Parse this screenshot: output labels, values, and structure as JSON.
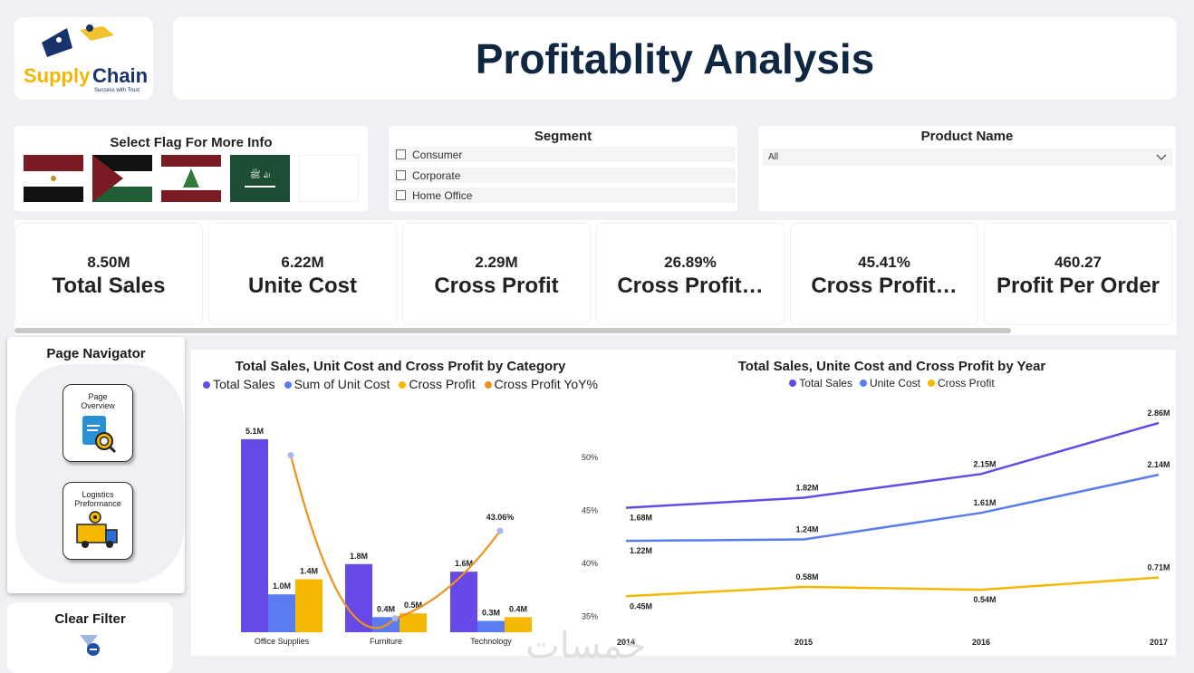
{
  "logo": {
    "brand_word1": "Supply",
    "brand_word2": "Chain",
    "tagline": "Success with Trust"
  },
  "header": {
    "title": "Profitablity Analysis"
  },
  "flags": {
    "title": "Select Flag For More Info",
    "items": [
      "Egypt",
      "Palestine",
      "Lebanon",
      "Saudi Arabia",
      ""
    ]
  },
  "segment": {
    "title": "Segment",
    "options": [
      "Consumer",
      "Corporate",
      "Home Office"
    ]
  },
  "product": {
    "title": "Product Name",
    "selected": "All"
  },
  "kpis": [
    {
      "value": "8.50M",
      "label": "Total Sales"
    },
    {
      "value": "6.22M",
      "label": "Unite Cost"
    },
    {
      "value": "2.29M",
      "label": "Cross Profit"
    },
    {
      "value": "26.89%",
      "label": "Cross Profit…"
    },
    {
      "value": "45.41%",
      "label": "Cross Profit…"
    },
    {
      "value": "460.27",
      "label": "Profit Per Order"
    }
  ],
  "navigator": {
    "title": "Page Navigator",
    "buttons": [
      {
        "line1": "Page",
        "line2": "Overview"
      },
      {
        "line1": "Logistics",
        "line2": "Preformance"
      }
    ]
  },
  "clear_filter": {
    "title": "Clear Filter"
  },
  "watermark": "خمسات",
  "colors": {
    "sales": "#6749e8",
    "cost": "#5b7cf0",
    "profit": "#f5b800",
    "yoy": "#f0901e",
    "title": "#0f2740"
  },
  "chart_data": [
    {
      "type": "bar",
      "title": "Total Sales, Unit Cost and Cross Profit by Category",
      "legend": [
        "Total Sales",
        "Sum of Unit Cost",
        "Cross Profit",
        "Cross Profit YoY%"
      ],
      "categories": [
        "Office Supplies",
        "Furniture",
        "Technology"
      ],
      "series": [
        {
          "name": "Total Sales",
          "values": [
            5.1,
            1.8,
            1.6
          ],
          "labels": [
            "5.1M",
            "1.8M",
            "1.6M"
          ]
        },
        {
          "name": "Sum of Unit Cost",
          "values": [
            1.0,
            0.4,
            0.3
          ],
          "labels": [
            "1.0M",
            "0.4M",
            "0.3M"
          ]
        },
        {
          "name": "Cross Profit",
          "values": [
            1.4,
            0.5,
            0.4
          ],
          "labels": [
            "1.4M",
            "0.5M",
            "0.4M"
          ]
        }
      ],
      "line": {
        "name": "Cross Profit YoY%",
        "values": [
          50.2,
          34.8,
          43.06
        ],
        "label": "43.06%"
      },
      "y2_ticks": [
        "50%",
        "45%",
        "40%",
        "35%"
      ],
      "y2lim": [
        33.5,
        53.5
      ],
      "ylim": [
        0,
        5.6
      ]
    },
    {
      "type": "line",
      "title": "Total Sales, Unite Cost and Cross Profit by Year",
      "legend": [
        "Total Sales",
        "Unite Cost",
        "Cross Profit"
      ],
      "x": [
        "2014",
        "2015",
        "2016",
        "2017"
      ],
      "series": [
        {
          "name": "Total Sales",
          "values": [
            1.68,
            1.82,
            2.15,
            2.86
          ],
          "labels": [
            "1.68M",
            "1.82M",
            "2.15M",
            "2.86M"
          ]
        },
        {
          "name": "Unite Cost",
          "values": [
            1.22,
            1.24,
            1.61,
            2.14
          ],
          "labels": [
            "1.22M",
            "1.24M",
            "1.61M",
            "2.14M"
          ]
        },
        {
          "name": "Cross Profit",
          "values": [
            0.45,
            0.58,
            0.54,
            0.71
          ],
          "labels": [
            "0.45M",
            "0.58M",
            "0.54M",
            "0.71M"
          ]
        }
      ],
      "ylim": [
        0,
        3.3
      ]
    }
  ]
}
